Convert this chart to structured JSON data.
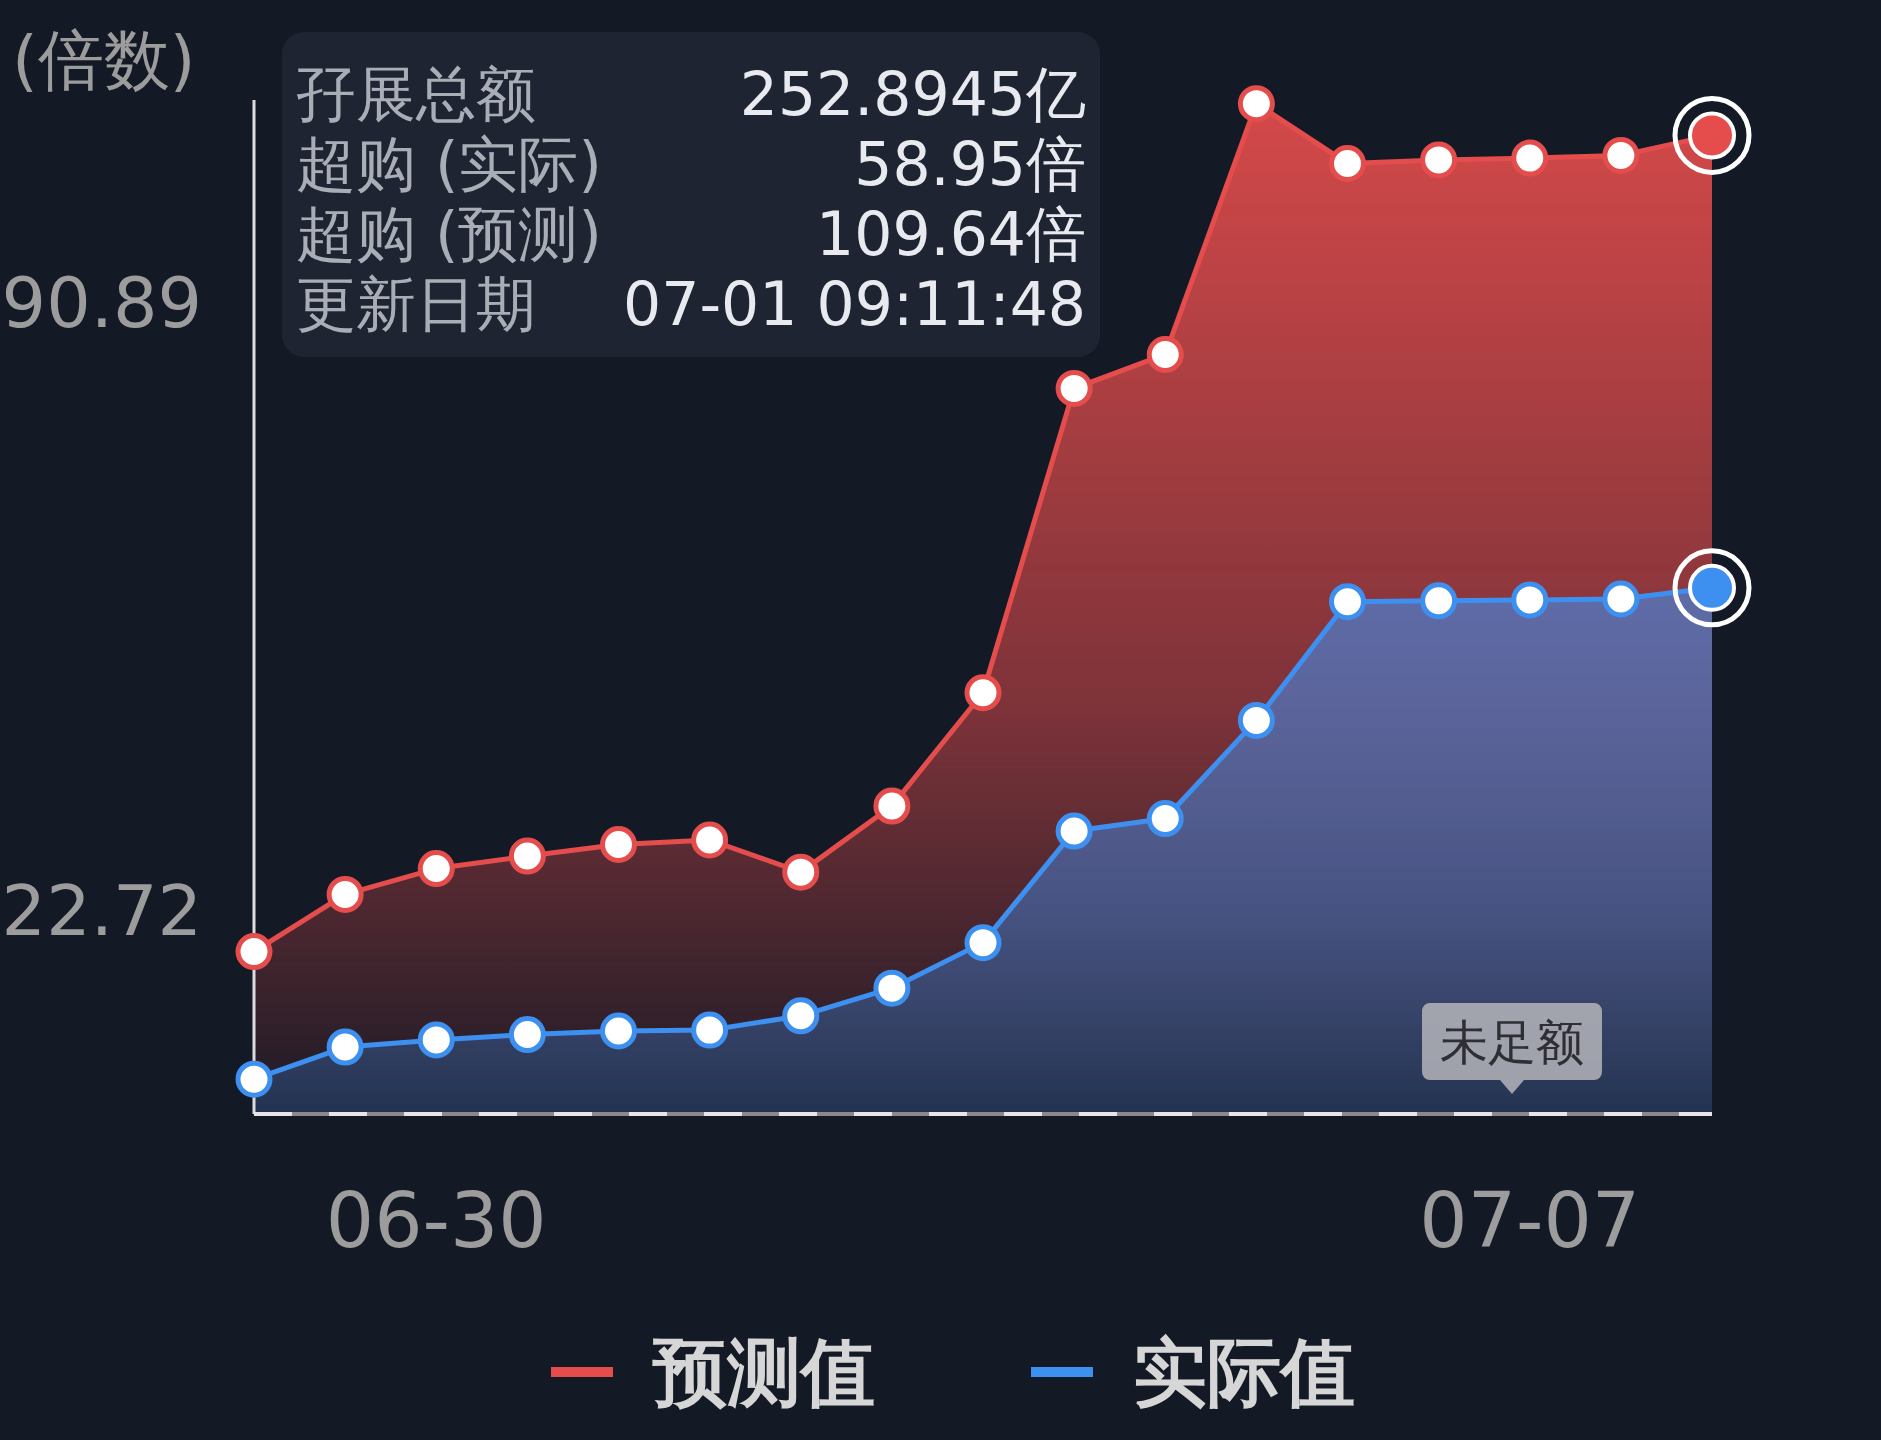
{
  "chart_data": {
    "type": "area",
    "ylabel": "(倍数)",
    "categories": [
      null,
      null,
      "06-30",
      null,
      null,
      null,
      null,
      null,
      null,
      null,
      null,
      null,
      null,
      null,
      "07-07",
      null,
      null
    ],
    "series": [
      {
        "name": "预测值",
        "color": "#e54d4d",
        "values": [
          18.2,
          24.6,
          27.5,
          28.9,
          30.2,
          30.7,
          27.1,
          34.5,
          47.2,
          81.3,
          85.1,
          113.2,
          106.5,
          106.9,
          107.1,
          107.4,
          109.64
        ]
      },
      {
        "name": "实际值",
        "color": "#3d8ff0",
        "values": [
          3.9,
          7.5,
          8.3,
          8.9,
          9.3,
          9.4,
          11.0,
          14.1,
          19.2,
          31.7,
          33.1,
          44.1,
          57.4,
          57.5,
          57.6,
          57.7,
          58.95
        ]
      }
    ],
    "ylim": [
      0,
      113.61
    ],
    "yticks": [
      22.72,
      90.89
    ],
    "legend": "bottom",
    "marker": "circle",
    "annotations": [
      "孖展总额",
      "252.8945亿",
      "超购 (实际)",
      "58.95倍",
      "超购 (预测)",
      "109.64倍",
      "更新日期",
      "07-01 09:11:48",
      "未足额"
    ]
  }
}
